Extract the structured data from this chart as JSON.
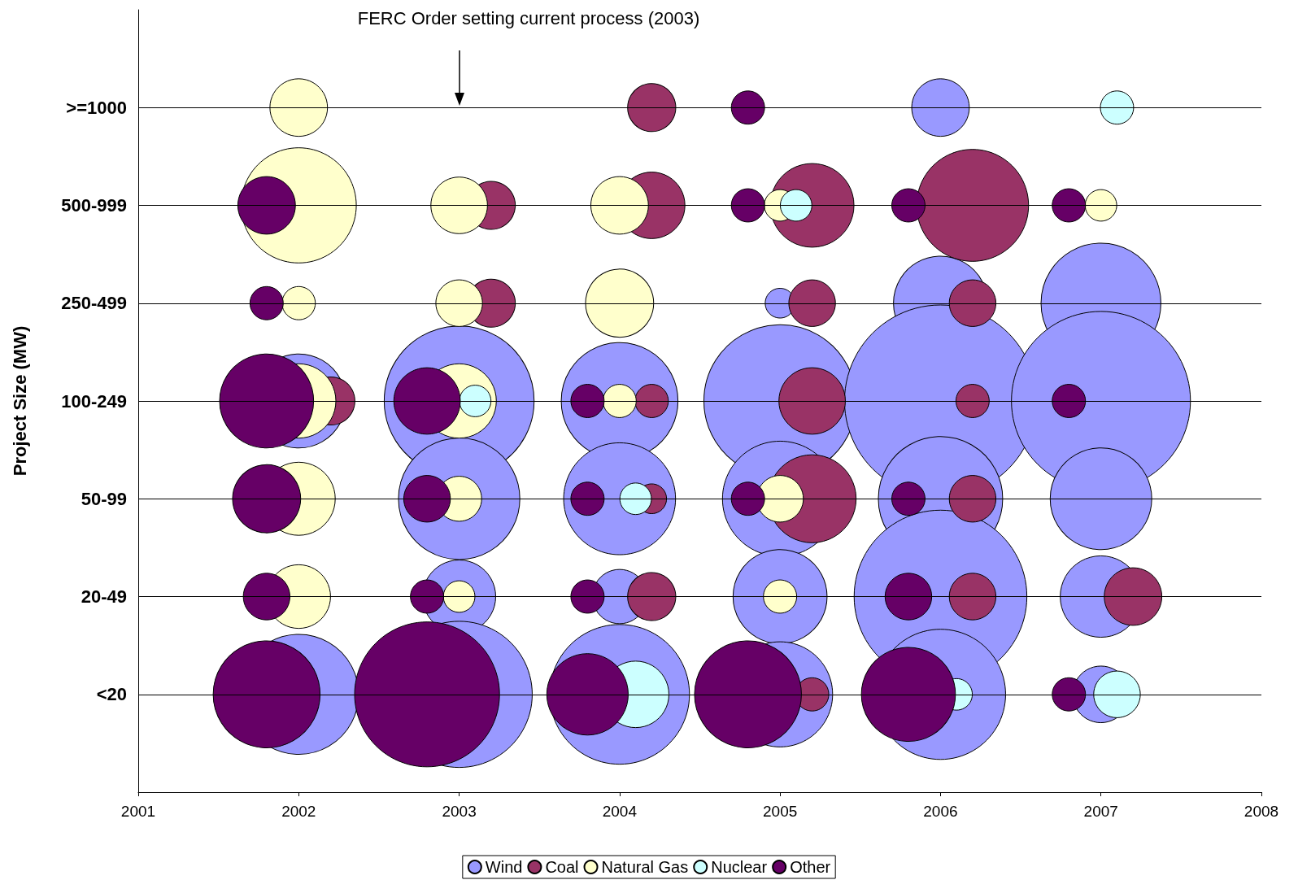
{
  "chart_data": {
    "type": "bubble",
    "orientation": "horizontal",
    "ylabel": "Project Size (MW)",
    "categories": [
      ">=1000",
      "500-999",
      "250-499",
      "100-249",
      "50-99",
      "20-49",
      "<20"
    ],
    "xlim": [
      2001,
      2008
    ],
    "xticks": [
      2001,
      2002,
      2003,
      2004,
      2005,
      2006,
      2007,
      2008
    ],
    "grid": "y",
    "legend": "bottom",
    "marker": "circle",
    "annotations": [
      "FERC Order setting current process (2003)"
    ],
    "series": [
      {
        "name": "Wind",
        "color": "#9999ff",
        "values": [
          null,
          null,
          null,
          2002,
          null,
          null,
          2002
        ],
        "sizes": [
          null,
          null,
          null,
          0.24,
          null,
          null,
          0.39
        ]
      },
      {
        "color": "#9999ff",
        "values": [
          null,
          null,
          null,
          2003,
          2003,
          2003,
          2003
        ],
        "sizes": [
          null,
          null,
          null,
          0.61,
          0.4,
          0.145,
          0.58
        ]
      },
      {
        "color": "#9999ff",
        "values": [
          null,
          null,
          null,
          2004,
          2004,
          2004,
          2004
        ],
        "sizes": [
          null,
          null,
          null,
          0.37,
          0.34,
          0.08,
          0.53
        ]
      },
      {
        "color": "#9999ff",
        "values": [
          null,
          null,
          2005,
          2005,
          2005,
          2005,
          2005
        ],
        "sizes": [
          null,
          null,
          0.024,
          0.63,
          0.36,
          0.24,
          0.3
        ]
      },
      {
        "color": "#9999ff",
        "values": [
          2006,
          null,
          2006,
          2006,
          2006,
          2006,
          2006
        ],
        "sizes": [
          0.09,
          null,
          0.24,
          1,
          0.42,
          0.81,
          0.46
        ]
      },
      {
        "color": "#9999ff",
        "values": [
          null,
          null,
          2007,
          2007,
          2007,
          2007,
          2007
        ],
        "sizes": [
          null,
          null,
          0.39,
          0.87,
          0.28,
          0.18,
          0.087
        ]
      },
      {
        "name": "Coal",
        "color": "#993366",
        "values": [
          null,
          null,
          null,
          2002.2,
          null,
          null,
          null
        ],
        "sizes": [
          null,
          null,
          null,
          0.063,
          null,
          null,
          null
        ]
      },
      {
        "color": "#993366",
        "values": [
          null,
          2003.2,
          2003.2,
          null,
          null,
          null,
          null
        ],
        "sizes": [
          null,
          0.063,
          0.063,
          null,
          null,
          null,
          null
        ]
      },
      {
        "color": "#993366",
        "values": [
          2004.2,
          2004.2,
          null,
          2004.2,
          2004.2,
          2004.2,
          null
        ],
        "sizes": [
          0.063,
          0.12,
          null,
          0.03,
          0.024,
          0.063,
          null
        ]
      },
      {
        "color": "#993366",
        "values": [
          null,
          2005.2,
          2005.2,
          2005.2,
          2005.2,
          null,
          2005.2
        ],
        "sizes": [
          null,
          0.19,
          0.059,
          0.12,
          0.21,
          null,
          0.03
        ]
      },
      {
        "color": "#993366",
        "values": [
          null,
          2006.2,
          2006.2,
          2006.2,
          2006.2,
          2006.2,
          null
        ],
        "sizes": [
          null,
          0.34,
          0.059,
          0.03,
          0.059,
          0.059,
          null
        ]
      },
      {
        "color": "#993366",
        "values": [
          null,
          null,
          null,
          null,
          null,
          2007.2,
          null
        ],
        "sizes": [
          null,
          null,
          null,
          null,
          null,
          0.09,
          null
        ]
      },
      {
        "name": "Natural Gas",
        "color": "#ffffcc",
        "values": [
          2002,
          2002,
          2002,
          2002,
          2002,
          2002,
          null
        ],
        "sizes": [
          0.09,
          0.36,
          0.03,
          0.15,
          0.145,
          0.11,
          null
        ]
      },
      {
        "color": "#ffffcc",
        "values": [
          null,
          2003,
          2003,
          2003,
          2003,
          2003,
          null
        ],
        "sizes": [
          null,
          0.087,
          0.059,
          0.15,
          0.055,
          0.027,
          null
        ]
      },
      {
        "color": "#ffffcc",
        "values": [
          null,
          2004,
          2004,
          2004,
          null,
          null,
          null
        ],
        "sizes": [
          null,
          0.09,
          0.126,
          0.03,
          null,
          null,
          null
        ]
      },
      {
        "color": "#ffffcc",
        "values": [
          null,
          2005,
          null,
          null,
          2005,
          2005,
          null
        ],
        "sizes": [
          null,
          0.027,
          null,
          null,
          0.059,
          0.03,
          null
        ]
      },
      {
        "color": "#ffffcc",
        "values": [
          null,
          2007,
          null,
          null,
          null,
          null,
          null
        ],
        "sizes": [
          null,
          0.027,
          null,
          null,
          null,
          null,
          null
        ]
      },
      {
        "name": "Nuclear",
        "color": "#ccffff",
        "values": [
          null,
          null,
          null,
          2003.1,
          null,
          null,
          null
        ],
        "sizes": [
          null,
          null,
          null,
          0.027,
          null,
          null,
          null
        ]
      },
      {
        "color": "#ccffff",
        "values": [
          null,
          null,
          null,
          null,
          2004.1,
          null,
          2004.1
        ],
        "sizes": [
          null,
          null,
          null,
          null,
          0.027,
          null,
          0.12
        ]
      },
      {
        "color": "#ccffff",
        "values": [
          null,
          2005.1,
          null,
          null,
          null,
          null,
          null
        ],
        "sizes": [
          null,
          0.027,
          null,
          null,
          null,
          null,
          null
        ]
      },
      {
        "color": "#ccffff",
        "values": [
          null,
          null,
          null,
          null,
          null,
          null,
          2006.1
        ],
        "sizes": [
          null,
          null,
          null,
          null,
          null,
          null,
          0.027
        ]
      },
      {
        "color": "#ccffff",
        "values": [
          2007.1,
          null,
          null,
          null,
          null,
          null,
          2007.1
        ],
        "sizes": [
          0.03,
          null,
          null,
          null,
          null,
          null,
          0.059
        ]
      },
      {
        "name": "Other",
        "color": "#660066",
        "values": [
          null,
          2001.8,
          2001.8,
          2001.8,
          2001.8,
          2001.8,
          2001.8
        ],
        "sizes": [
          null,
          0.09,
          0.03,
          0.24,
          0.126,
          0.059,
          0.31
        ]
      },
      {
        "color": "#660066",
        "values": [
          null,
          null,
          null,
          2002.8,
          2002.8,
          2002.8,
          2002.8
        ],
        "sizes": [
          null,
          null,
          null,
          0.12,
          0.059,
          0.03,
          0.57
        ]
      },
      {
        "color": "#660066",
        "values": [
          null,
          null,
          null,
          2003.8,
          2003.8,
          2003.8,
          2003.8
        ],
        "sizes": [
          null,
          null,
          null,
          0.03,
          0.03,
          0.03,
          0.18
        ]
      },
      {
        "color": "#660066",
        "values": [
          2004.8,
          2004.8,
          null,
          null,
          2004.8,
          null,
          2004.8
        ],
        "sizes": [
          0.03,
          0.03,
          null,
          null,
          0.03,
          null,
          0.31
        ]
      },
      {
        "color": "#660066",
        "values": [
          null,
          2005.8,
          null,
          null,
          2005.8,
          2005.8,
          2005.8
        ],
        "sizes": [
          null,
          0.03,
          null,
          null,
          0.03,
          0.059,
          0.24
        ]
      },
      {
        "color": "#660066",
        "values": [
          null,
          2006.8,
          null,
          2006.8,
          null,
          null,
          2006.8
        ],
        "sizes": [
          null,
          0.03,
          null,
          0.03,
          null,
          null,
          0.03
        ]
      }
    ]
  }
}
